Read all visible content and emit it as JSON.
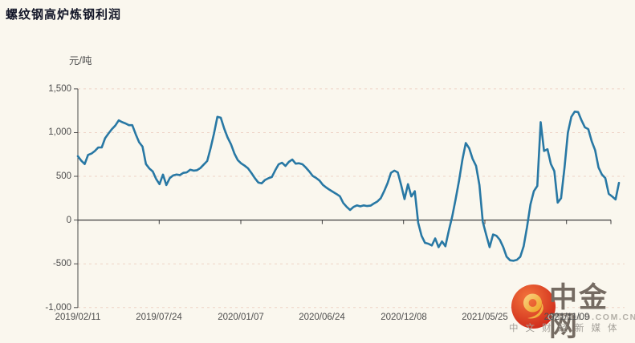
{
  "page": {
    "title": "螺纹钢高炉炼钢利润",
    "unit_label": "元/吨"
  },
  "watermark": {
    "brand": "中金网",
    "domain": "CNGOLD.COM.CN",
    "tagline": "中文财经新媒体"
  },
  "colors": {
    "background": "#faf7ee",
    "line": "#2878a4",
    "grid": "#eed3c6",
    "axis": "#4b4b4b",
    "zero_line": "#3d3d3d",
    "label_text": "#4e4e4e",
    "title_text": "#121527",
    "brand_text": "#756b62",
    "logo_red": "#cc2418",
    "logo_gold": "#f2b23e"
  },
  "chart_data": {
    "type": "line",
    "title": "螺纹钢高炉炼钢利润",
    "ylabel": "元/吨",
    "ylim": [
      -1000,
      1500
    ],
    "grid": true,
    "legend": false,
    "y_ticks": [
      1500,
      1000,
      500,
      0,
      -500,
      -1000
    ],
    "y_tick_labels": [
      "1,500",
      "1,000",
      "500",
      "0",
      "-500",
      "-1,000"
    ],
    "x_tick_labels": [
      "2019/02/11",
      "2019/07/24",
      "2020/01/07",
      "2020/06/24",
      "2020/12/08",
      "2021/05/25",
      "2021/11/09"
    ],
    "x_tick_index": [
      0,
      23.9,
      47.9,
      71.8,
      95.7,
      119.6,
      143.6
    ],
    "x_start_date": "2019/02/11",
    "x_sample_interval_days": 7,
    "series_name": "螺纹钢高炉炼钢利润",
    "values": [
      730,
      680,
      640,
      745,
      760,
      790,
      830,
      830,
      935,
      990,
      1040,
      1080,
      1140,
      1120,
      1105,
      1085,
      1085,
      980,
      890,
      840,
      640,
      590,
      555,
      470,
      410,
      520,
      400,
      480,
      510,
      520,
      515,
      540,
      545,
      575,
      565,
      570,
      595,
      635,
      675,
      820,
      990,
      1180,
      1170,
      1045,
      945,
      865,
      760,
      685,
      648,
      622,
      592,
      538,
      480,
      430,
      420,
      458,
      478,
      492,
      570,
      638,
      655,
      618,
      665,
      692,
      645,
      650,
      638,
      600,
      555,
      505,
      482,
      452,
      402,
      372,
      345,
      322,
      298,
      272,
      195,
      150,
      115,
      150,
      168,
      157,
      168,
      160,
      165,
      190,
      212,
      250,
      330,
      420,
      540,
      565,
      545,
      400,
      240,
      410,
      270,
      330,
      -30,
      -180,
      -260,
      -270,
      -290,
      -210,
      -310,
      -245,
      -300,
      -120,
      40,
      235,
      450,
      690,
      880,
      820,
      700,
      620,
      400,
      -20,
      -170,
      -310,
      -165,
      -180,
      -225,
      -310,
      -420,
      -460,
      -465,
      -455,
      -420,
      -300,
      -80,
      180,
      330,
      390,
      1120,
      790,
      810,
      640,
      560,
      200,
      250,
      600,
      1000,
      1180,
      1240,
      1235,
      1140,
      1060,
      1040,
      900,
      800,
      600,
      520,
      480,
      300,
      270,
      235,
      425
    ]
  }
}
